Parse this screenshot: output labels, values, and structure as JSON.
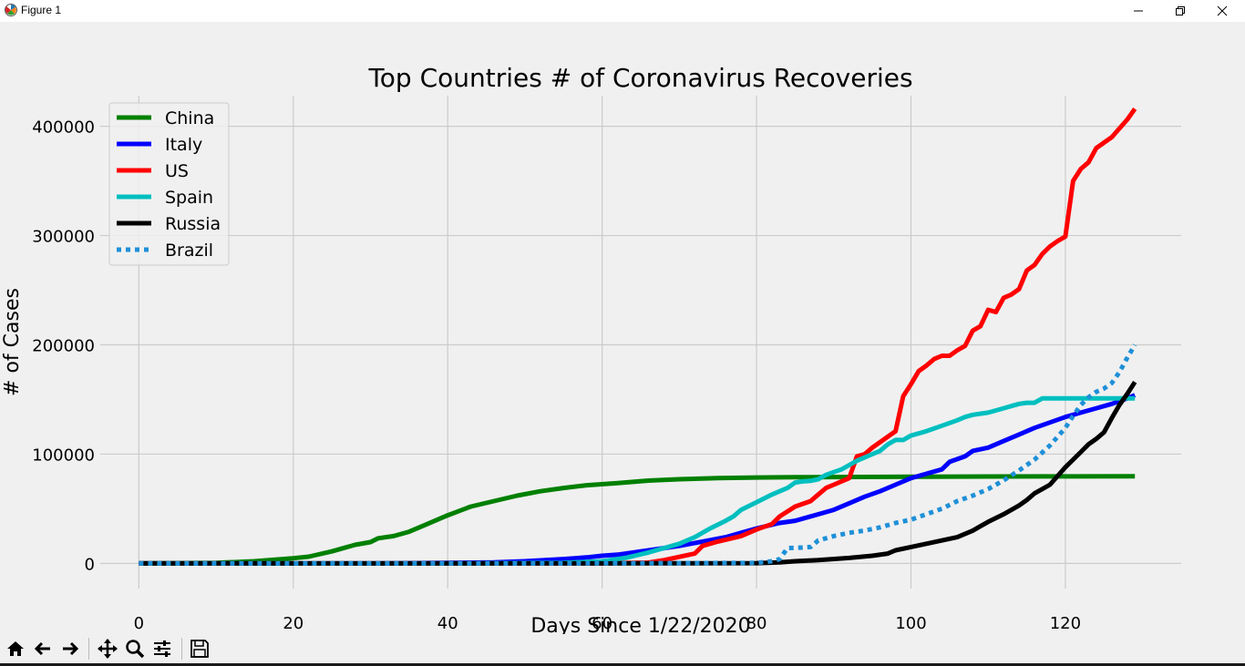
{
  "window": {
    "title": "Figure 1",
    "app_icon": "matplotlib-icon",
    "controls": [
      "minimize-icon",
      "restore-icon",
      "close-icon"
    ]
  },
  "chart_data": {
    "type": "line",
    "title": "Top Countries # of Coronavirus Recoveries",
    "xlabel": "Days Since 1/22/2020",
    "ylabel": "# of Cases",
    "xlim": [
      -5,
      135
    ],
    "ylim": [
      -23000,
      428000
    ],
    "xticks": [
      0,
      20,
      40,
      60,
      80,
      100,
      120
    ],
    "yticks": [
      0,
      100000,
      200000,
      300000,
      400000
    ],
    "grid": true,
    "legend": "top-left",
    "series": [
      {
        "name": "China",
        "color": "#008000",
        "style": "solid",
        "points": [
          [
            0,
            28
          ],
          [
            10,
            500
          ],
          [
            15,
            2000
          ],
          [
            20,
            4800
          ],
          [
            22,
            6200
          ],
          [
            25,
            11000
          ],
          [
            28,
            17000
          ],
          [
            30,
            19500
          ],
          [
            31,
            23000
          ],
          [
            33,
            25000
          ],
          [
            35,
            29000
          ],
          [
            37,
            35000
          ],
          [
            40,
            44000
          ],
          [
            43,
            52000
          ],
          [
            46,
            57000
          ],
          [
            49,
            62000
          ],
          [
            52,
            66000
          ],
          [
            55,
            69000
          ],
          [
            58,
            71500
          ],
          [
            62,
            73500
          ],
          [
            66,
            75800
          ],
          [
            70,
            77000
          ],
          [
            75,
            78000
          ],
          [
            80,
            78600
          ],
          [
            85,
            78900
          ],
          [
            90,
            79000
          ],
          [
            100,
            79300
          ],
          [
            110,
            79500
          ],
          [
            120,
            79600
          ],
          [
            129,
            79700
          ]
        ]
      },
      {
        "name": "Italy",
        "color": "#0000ff",
        "style": "solid",
        "points": [
          [
            0,
            0
          ],
          [
            30,
            50
          ],
          [
            40,
            500
          ],
          [
            46,
            1000
          ],
          [
            50,
            2000
          ],
          [
            55,
            4000
          ],
          [
            58,
            5500
          ],
          [
            60,
            7000
          ],
          [
            62,
            8000
          ],
          [
            65,
            11000
          ],
          [
            68,
            14000
          ],
          [
            70,
            16000
          ],
          [
            73,
            20000
          ],
          [
            76,
            24000
          ],
          [
            78,
            28000
          ],
          [
            80,
            32000
          ],
          [
            83,
            37000
          ],
          [
            85,
            39000
          ],
          [
            87,
            43000
          ],
          [
            90,
            49000
          ],
          [
            92,
            55000
          ],
          [
            94,
            61000
          ],
          [
            96,
            66000
          ],
          [
            98,
            72000
          ],
          [
            100,
            78000
          ],
          [
            102,
            82000
          ],
          [
            104,
            86000
          ],
          [
            105,
            93000
          ],
          [
            107,
            98000
          ],
          [
            108,
            103000
          ],
          [
            110,
            106000
          ],
          [
            112,
            112000
          ],
          [
            114,
            118000
          ],
          [
            116,
            124000
          ],
          [
            118,
            129000
          ],
          [
            120,
            134000
          ],
          [
            122,
            138000
          ],
          [
            124,
            142000
          ],
          [
            126,
            146000
          ],
          [
            128,
            151000
          ],
          [
            129,
            154000
          ]
        ]
      },
      {
        "name": "US",
        "color": "#ff0000",
        "style": "solid",
        "points": [
          [
            0,
            0
          ],
          [
            40,
            10
          ],
          [
            60,
            200
          ],
          [
            66,
            800
          ],
          [
            68,
            3000
          ],
          [
            70,
            6000
          ],
          [
            72,
            9000
          ],
          [
            73,
            16000
          ],
          [
            75,
            20000
          ],
          [
            78,
            25000
          ],
          [
            80,
            31000
          ],
          [
            82,
            36000
          ],
          [
            83,
            43000
          ],
          [
            85,
            52000
          ],
          [
            87,
            57000
          ],
          [
            88,
            63000
          ],
          [
            89,
            69000
          ],
          [
            90,
            72000
          ],
          [
            92,
            78000
          ],
          [
            93,
            98000
          ],
          [
            94,
            100000
          ],
          [
            95,
            106000
          ],
          [
            96,
            111000
          ],
          [
            97,
            116000
          ],
          [
            98,
            121000
          ],
          [
            99,
            153000
          ],
          [
            100,
            164000
          ],
          [
            101,
            176000
          ],
          [
            102,
            181000
          ],
          [
            103,
            187000
          ],
          [
            104,
            190000
          ],
          [
            105,
            190000
          ],
          [
            106,
            195000
          ],
          [
            107,
            199000
          ],
          [
            108,
            213000
          ],
          [
            109,
            217000
          ],
          [
            110,
            232000
          ],
          [
            111,
            230000
          ],
          [
            112,
            243000
          ],
          [
            113,
            246000
          ],
          [
            114,
            251000
          ],
          [
            115,
            268000
          ],
          [
            116,
            273000
          ],
          [
            117,
            283000
          ],
          [
            118,
            290000
          ],
          [
            119,
            295000
          ],
          [
            120,
            299000
          ],
          [
            121,
            350000
          ],
          [
            122,
            361000
          ],
          [
            123,
            367000
          ],
          [
            124,
            380000
          ],
          [
            126,
            390000
          ],
          [
            127,
            398000
          ],
          [
            128,
            406000
          ],
          [
            129,
            416000
          ]
        ]
      },
      {
        "name": "Spain",
        "color": "#00bfbf",
        "style": "solid",
        "points": [
          [
            0,
            0
          ],
          [
            40,
            50
          ],
          [
            55,
            500
          ],
          [
            60,
            2000
          ],
          [
            63,
            5000
          ],
          [
            66,
            10000
          ],
          [
            68,
            14000
          ],
          [
            70,
            18000
          ],
          [
            72,
            24000
          ],
          [
            74,
            32000
          ],
          [
            76,
            39000
          ],
          [
            77,
            43000
          ],
          [
            78,
            49000
          ],
          [
            80,
            56000
          ],
          [
            82,
            63000
          ],
          [
            84,
            69000
          ],
          [
            85,
            74000
          ],
          [
            86,
            75000
          ],
          [
            87,
            75500
          ],
          [
            88,
            77000
          ],
          [
            89,
            81000
          ],
          [
            91,
            86000
          ],
          [
            92,
            90000
          ],
          [
            93,
            94000
          ],
          [
            95,
            100000
          ],
          [
            96,
            103000
          ],
          [
            97,
            109000
          ],
          [
            98,
            113000
          ],
          [
            99,
            113000
          ],
          [
            100,
            117000
          ],
          [
            102,
            121000
          ],
          [
            104,
            126000
          ],
          [
            106,
            131000
          ],
          [
            107,
            134000
          ],
          [
            108,
            136000
          ],
          [
            110,
            138000
          ],
          [
            112,
            142000
          ],
          [
            113,
            144000
          ],
          [
            114,
            146000
          ],
          [
            115,
            147000
          ],
          [
            116,
            147000
          ],
          [
            117,
            151000
          ],
          [
            118,
            151000
          ],
          [
            121,
            151000
          ],
          [
            124,
            151000
          ],
          [
            127,
            151000
          ],
          [
            129,
            151000
          ]
        ]
      },
      {
        "name": "Russia",
        "color": "#000000",
        "style": "solid",
        "points": [
          [
            0,
            0
          ],
          [
            60,
            10
          ],
          [
            70,
            100
          ],
          [
            80,
            300
          ],
          [
            83,
            1000
          ],
          [
            85,
            2000
          ],
          [
            88,
            3000
          ],
          [
            92,
            5000
          ],
          [
            95,
            7000
          ],
          [
            97,
            9000
          ],
          [
            98,
            12000
          ],
          [
            100,
            15000
          ],
          [
            102,
            18000
          ],
          [
            104,
            21000
          ],
          [
            106,
            24000
          ],
          [
            108,
            30000
          ],
          [
            109,
            34000
          ],
          [
            110,
            38000
          ],
          [
            112,
            45000
          ],
          [
            114,
            53000
          ],
          [
            115,
            58000
          ],
          [
            116,
            64000
          ],
          [
            117,
            68000
          ],
          [
            118,
            72000
          ],
          [
            119,
            80000
          ],
          [
            120,
            88000
          ],
          [
            121,
            95000
          ],
          [
            122,
            102000
          ],
          [
            123,
            109000
          ],
          [
            124,
            114000
          ],
          [
            125,
            120000
          ],
          [
            126,
            133000
          ],
          [
            127,
            145000
          ],
          [
            128,
            155000
          ],
          [
            129,
            166000
          ]
        ]
      },
      {
        "name": "Brazil",
        "color": "#1e90d8",
        "style": "dotted",
        "points": [
          [
            0,
            0
          ],
          [
            40,
            0
          ],
          [
            60,
            100
          ],
          [
            80,
            500
          ],
          [
            82,
            2000
          ],
          [
            83,
            4000
          ],
          [
            84,
            14000
          ],
          [
            86,
            14500
          ],
          [
            87,
            15000
          ],
          [
            88,
            21000
          ],
          [
            90,
            25000
          ],
          [
            92,
            28000
          ],
          [
            94,
            30000
          ],
          [
            96,
            33000
          ],
          [
            98,
            37000
          ],
          [
            100,
            40000
          ],
          [
            102,
            45000
          ],
          [
            104,
            50000
          ],
          [
            106,
            57000
          ],
          [
            108,
            62000
          ],
          [
            110,
            68000
          ],
          [
            112,
            76000
          ],
          [
            114,
            85000
          ],
          [
            116,
            95000
          ],
          [
            118,
            108000
          ],
          [
            120,
            124000
          ],
          [
            121,
            135000
          ],
          [
            122,
            145000
          ],
          [
            123,
            152000
          ],
          [
            124,
            157000
          ],
          [
            125,
            160000
          ],
          [
            126,
            165000
          ],
          [
            127,
            175000
          ],
          [
            128,
            188000
          ],
          [
            129,
            200000
          ]
        ]
      }
    ]
  },
  "toolbar": {
    "items": [
      "home-icon",
      "back-icon",
      "forward-icon",
      "pan-icon",
      "zoom-icon",
      "configure-icon",
      "save-icon"
    ]
  }
}
